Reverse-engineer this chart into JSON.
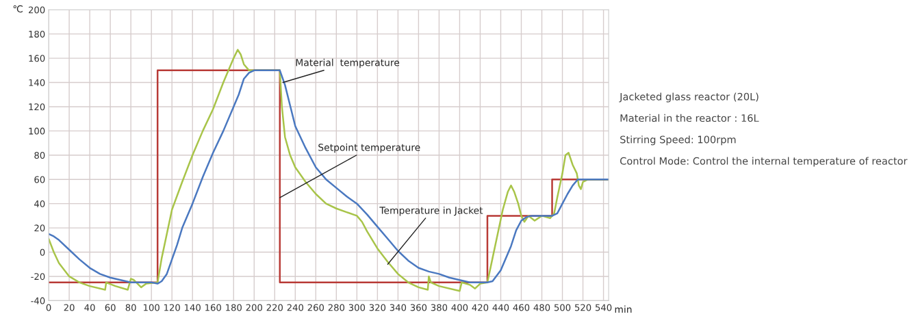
{
  "chart_data": {
    "type": "line",
    "xlabel": "min",
    "ylabel": "℃",
    "xlim": [
      0,
      545
    ],
    "ylim": [
      -40,
      200
    ],
    "xticks": [
      0,
      20,
      40,
      60,
      80,
      100,
      120,
      140,
      160,
      180,
      200,
      220,
      240,
      260,
      280,
      300,
      320,
      340,
      360,
      380,
      400,
      420,
      440,
      460,
      480,
      500,
      520,
      540
    ],
    "yticks": [
      -40,
      -20,
      0,
      20,
      40,
      60,
      80,
      100,
      120,
      140,
      160,
      180,
      200
    ],
    "grid": true,
    "marker": "none",
    "line_style": "solid",
    "series": [
      {
        "color": "#b83a36",
        "x": [
          0,
          106,
          106,
          225,
          225,
          427,
          427,
          490,
          490,
          545
        ],
        "values": [
          -25,
          -25,
          150,
          150,
          -25,
          -25,
          30,
          30,
          60,
          60
        ]
      },
      {
        "color": "#a8c449",
        "x": [
          0,
          5,
          10,
          20,
          30,
          40,
          55,
          56,
          65,
          77,
          80,
          83,
          90,
          95,
          106,
          110,
          115,
          120,
          130,
          140,
          150,
          160,
          170,
          180,
          184,
          187,
          190,
          195,
          225,
          227,
          230,
          235,
          240,
          250,
          260,
          270,
          280,
          290,
          300,
          305,
          310,
          320,
          330,
          340,
          350,
          360,
          369,
          370,
          372,
          380,
          400,
          402,
          410,
          415,
          420,
          427,
          432,
          437,
          442,
          447,
          450,
          453,
          457,
          460,
          463,
          467,
          473,
          480,
          488,
          492,
          495,
          500,
          503,
          506,
          510,
          514,
          516,
          518,
          520,
          525,
          545
        ],
        "values": [
          11,
          0,
          -9,
          -20,
          -25,
          -28,
          -31,
          -25,
          -28,
          -31,
          -22,
          -23,
          -29,
          -26,
          -25,
          -5,
          15,
          35,
          58,
          80,
          100,
          118,
          140,
          160,
          167,
          163,
          155,
          150,
          150,
          120,
          95,
          80,
          70,
          58,
          48,
          40,
          36,
          33,
          30,
          25,
          17,
          3,
          -8,
          -18,
          -25,
          -29,
          -31,
          -20,
          -25,
          -28,
          -32,
          -25,
          -27,
          -30,
          -26,
          -25,
          -5,
          15,
          35,
          50,
          55,
          50,
          40,
          30,
          25,
          30,
          26,
          30,
          28,
          32,
          45,
          65,
          80,
          82,
          72,
          65,
          55,
          52,
          58,
          60,
          60
        ]
      },
      {
        "color": "#4a78c0",
        "x": [
          0,
          5,
          10,
          20,
          30,
          40,
          50,
          60,
          70,
          80,
          100,
          106,
          110,
          115,
          120,
          125,
          130,
          140,
          150,
          160,
          170,
          180,
          185,
          190,
          195,
          200,
          225,
          230,
          240,
          250,
          260,
          270,
          280,
          290,
          300,
          310,
          320,
          330,
          340,
          350,
          360,
          370,
          380,
          390,
          400,
          410,
          427,
          432,
          440,
          450,
          455,
          460,
          465,
          470,
          490,
          495,
          500,
          505,
          510,
          515,
          545
        ],
        "values": [
          15,
          13,
          10,
          2,
          -6,
          -13,
          -18,
          -21,
          -23,
          -25,
          -25,
          -26,
          -24,
          -18,
          -6,
          6,
          20,
          40,
          62,
          82,
          100,
          120,
          130,
          143,
          148,
          150,
          150,
          138,
          104,
          86,
          70,
          60,
          53,
          46,
          40,
          31,
          21,
          11,
          1,
          -7,
          -13,
          -16,
          -18,
          -21,
          -23,
          -25,
          -25,
          -24,
          -15,
          5,
          18,
          26,
          29,
          30,
          30,
          32,
          40,
          48,
          55,
          60,
          60
        ]
      }
    ],
    "annotations": [
      {
        "text": "Material  temperature",
        "x": 228,
        "y": 140
      },
      {
        "text": "Setpoint temperature",
        "x": 225,
        "y": 45
      },
      {
        "text": "Temperature in Jacket",
        "x": 330,
        "y": -10
      },
      "Jacketed glass reactor (20L)",
      "Material in the reactor : 16L",
      "Stirring Speed: 100rpm",
      "Control Mode: Control the internal temperature of reactor"
    ]
  }
}
